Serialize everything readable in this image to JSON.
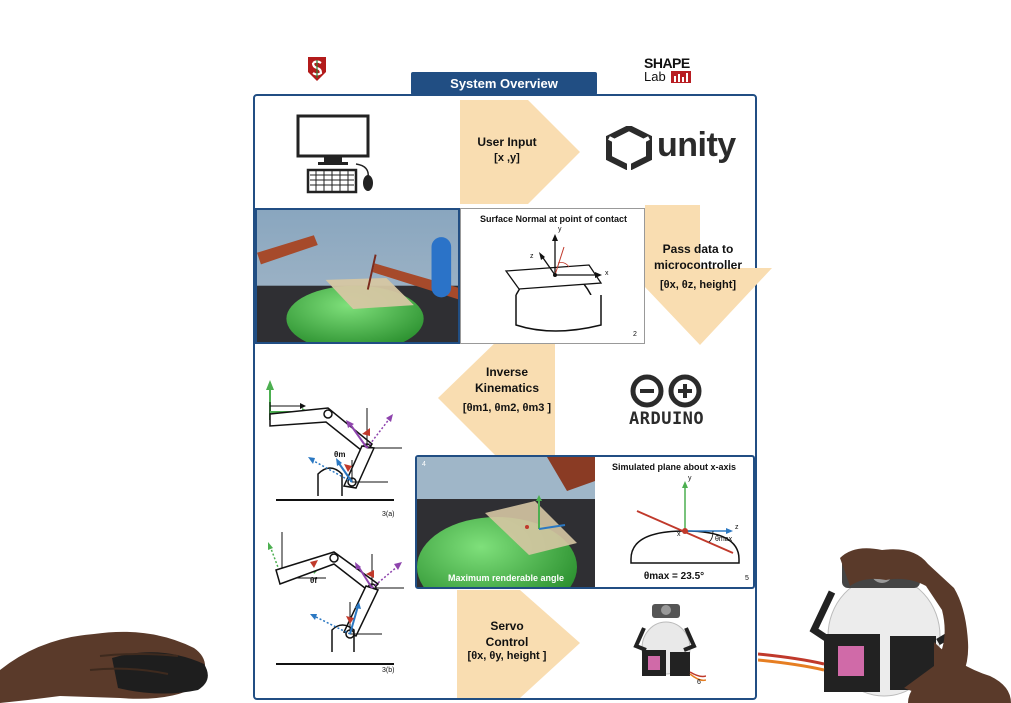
{
  "header": {
    "title": "System Overview",
    "shape_word": "SHAPE",
    "lab_word": "Lab"
  },
  "steps": {
    "user_input": {
      "label": "User Input",
      "sub": "[x ,y]"
    },
    "pass_data": {
      "label_line1": "Pass data to",
      "label_line2": "microcontroller",
      "sub": "[θx, θz, height]"
    },
    "inverse_kinematics": {
      "label_line1": "Inverse",
      "label_line2": "Kinematics",
      "sub": "[θm1, θm2, θm3 ]"
    },
    "servo_control": {
      "label_line1": "Servo",
      "label_line2": "Control",
      "sub": "[θx, θy, height ]"
    }
  },
  "brands": {
    "unity": "unity",
    "arduino": "ARDUINO"
  },
  "panels": {
    "surface_normal": {
      "title": "Surface Normal at point of contact",
      "axis_y": "y",
      "axis_z": "z",
      "axis_x": "x",
      "number": "2"
    },
    "kinematics_a": {
      "label": "3(a)",
      "theta": "θm"
    },
    "kinematics_b": {
      "label": "3(b)",
      "theta": "θf"
    },
    "sim_scene": {
      "number": "4",
      "caption": "Maximum renderable angle"
    },
    "sim_plane": {
      "title": "Simulated plane about x-axis",
      "axis_y": "y",
      "axis_z": "z",
      "axis_x": "x",
      "theta_label": "θmax",
      "equation": "θmax = 23.5°",
      "number": "5"
    },
    "device": {
      "number": "6"
    }
  },
  "colors": {
    "frame": "#214e83",
    "arrow": "#f9ddb1",
    "green": "#4caf50",
    "red": "#c0392b",
    "blue": "#2b78c2",
    "purple": "#8e44ad"
  }
}
